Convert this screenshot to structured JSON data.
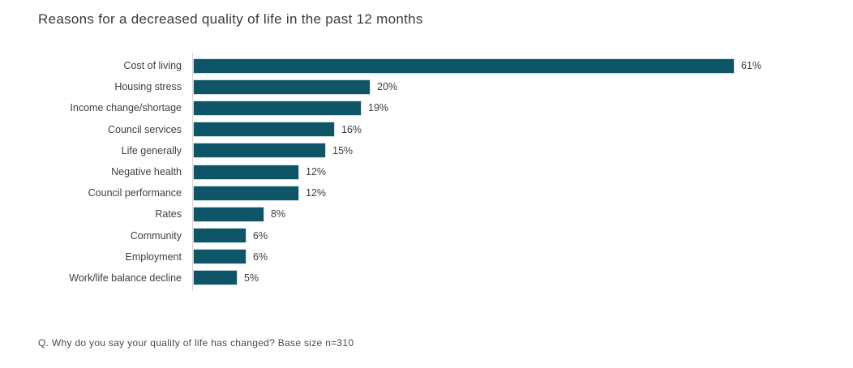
{
  "chart_data": {
    "type": "bar",
    "orientation": "horizontal",
    "title": "Reasons for a decreased quality of life in the past 12 months",
    "categories": [
      "Cost of living",
      "Housing stress",
      "Income change/shortage",
      "Council services",
      "Life generally",
      "Negative health",
      "Council performance",
      "Rates",
      "Community",
      "Employment",
      "Work/life balance decline"
    ],
    "values": [
      61,
      20,
      19,
      16,
      15,
      12,
      12,
      8,
      6,
      6,
      5
    ],
    "value_labels": [
      "61%",
      "20%",
      "19%",
      "16%",
      "15%",
      "12%",
      "12%",
      "8%",
      "6%",
      "6%",
      "5%"
    ],
    "xlabel": "",
    "ylabel": "",
    "xlim": [
      0,
      65
    ],
    "grid": false,
    "legend": false,
    "data_labels_position": "outside-end"
  },
  "footnote": {
    "text": "Q. Why do you say your quality of life has changed? Base size n=310"
  },
  "colors": {
    "bar_fill": "#0e5568",
    "bar_border": "#cfe2e8",
    "axis_line": "#d9d9d9",
    "title_text": "#3a3a3a",
    "label_text": "#3f3f3f",
    "background": "#ffffff"
  }
}
